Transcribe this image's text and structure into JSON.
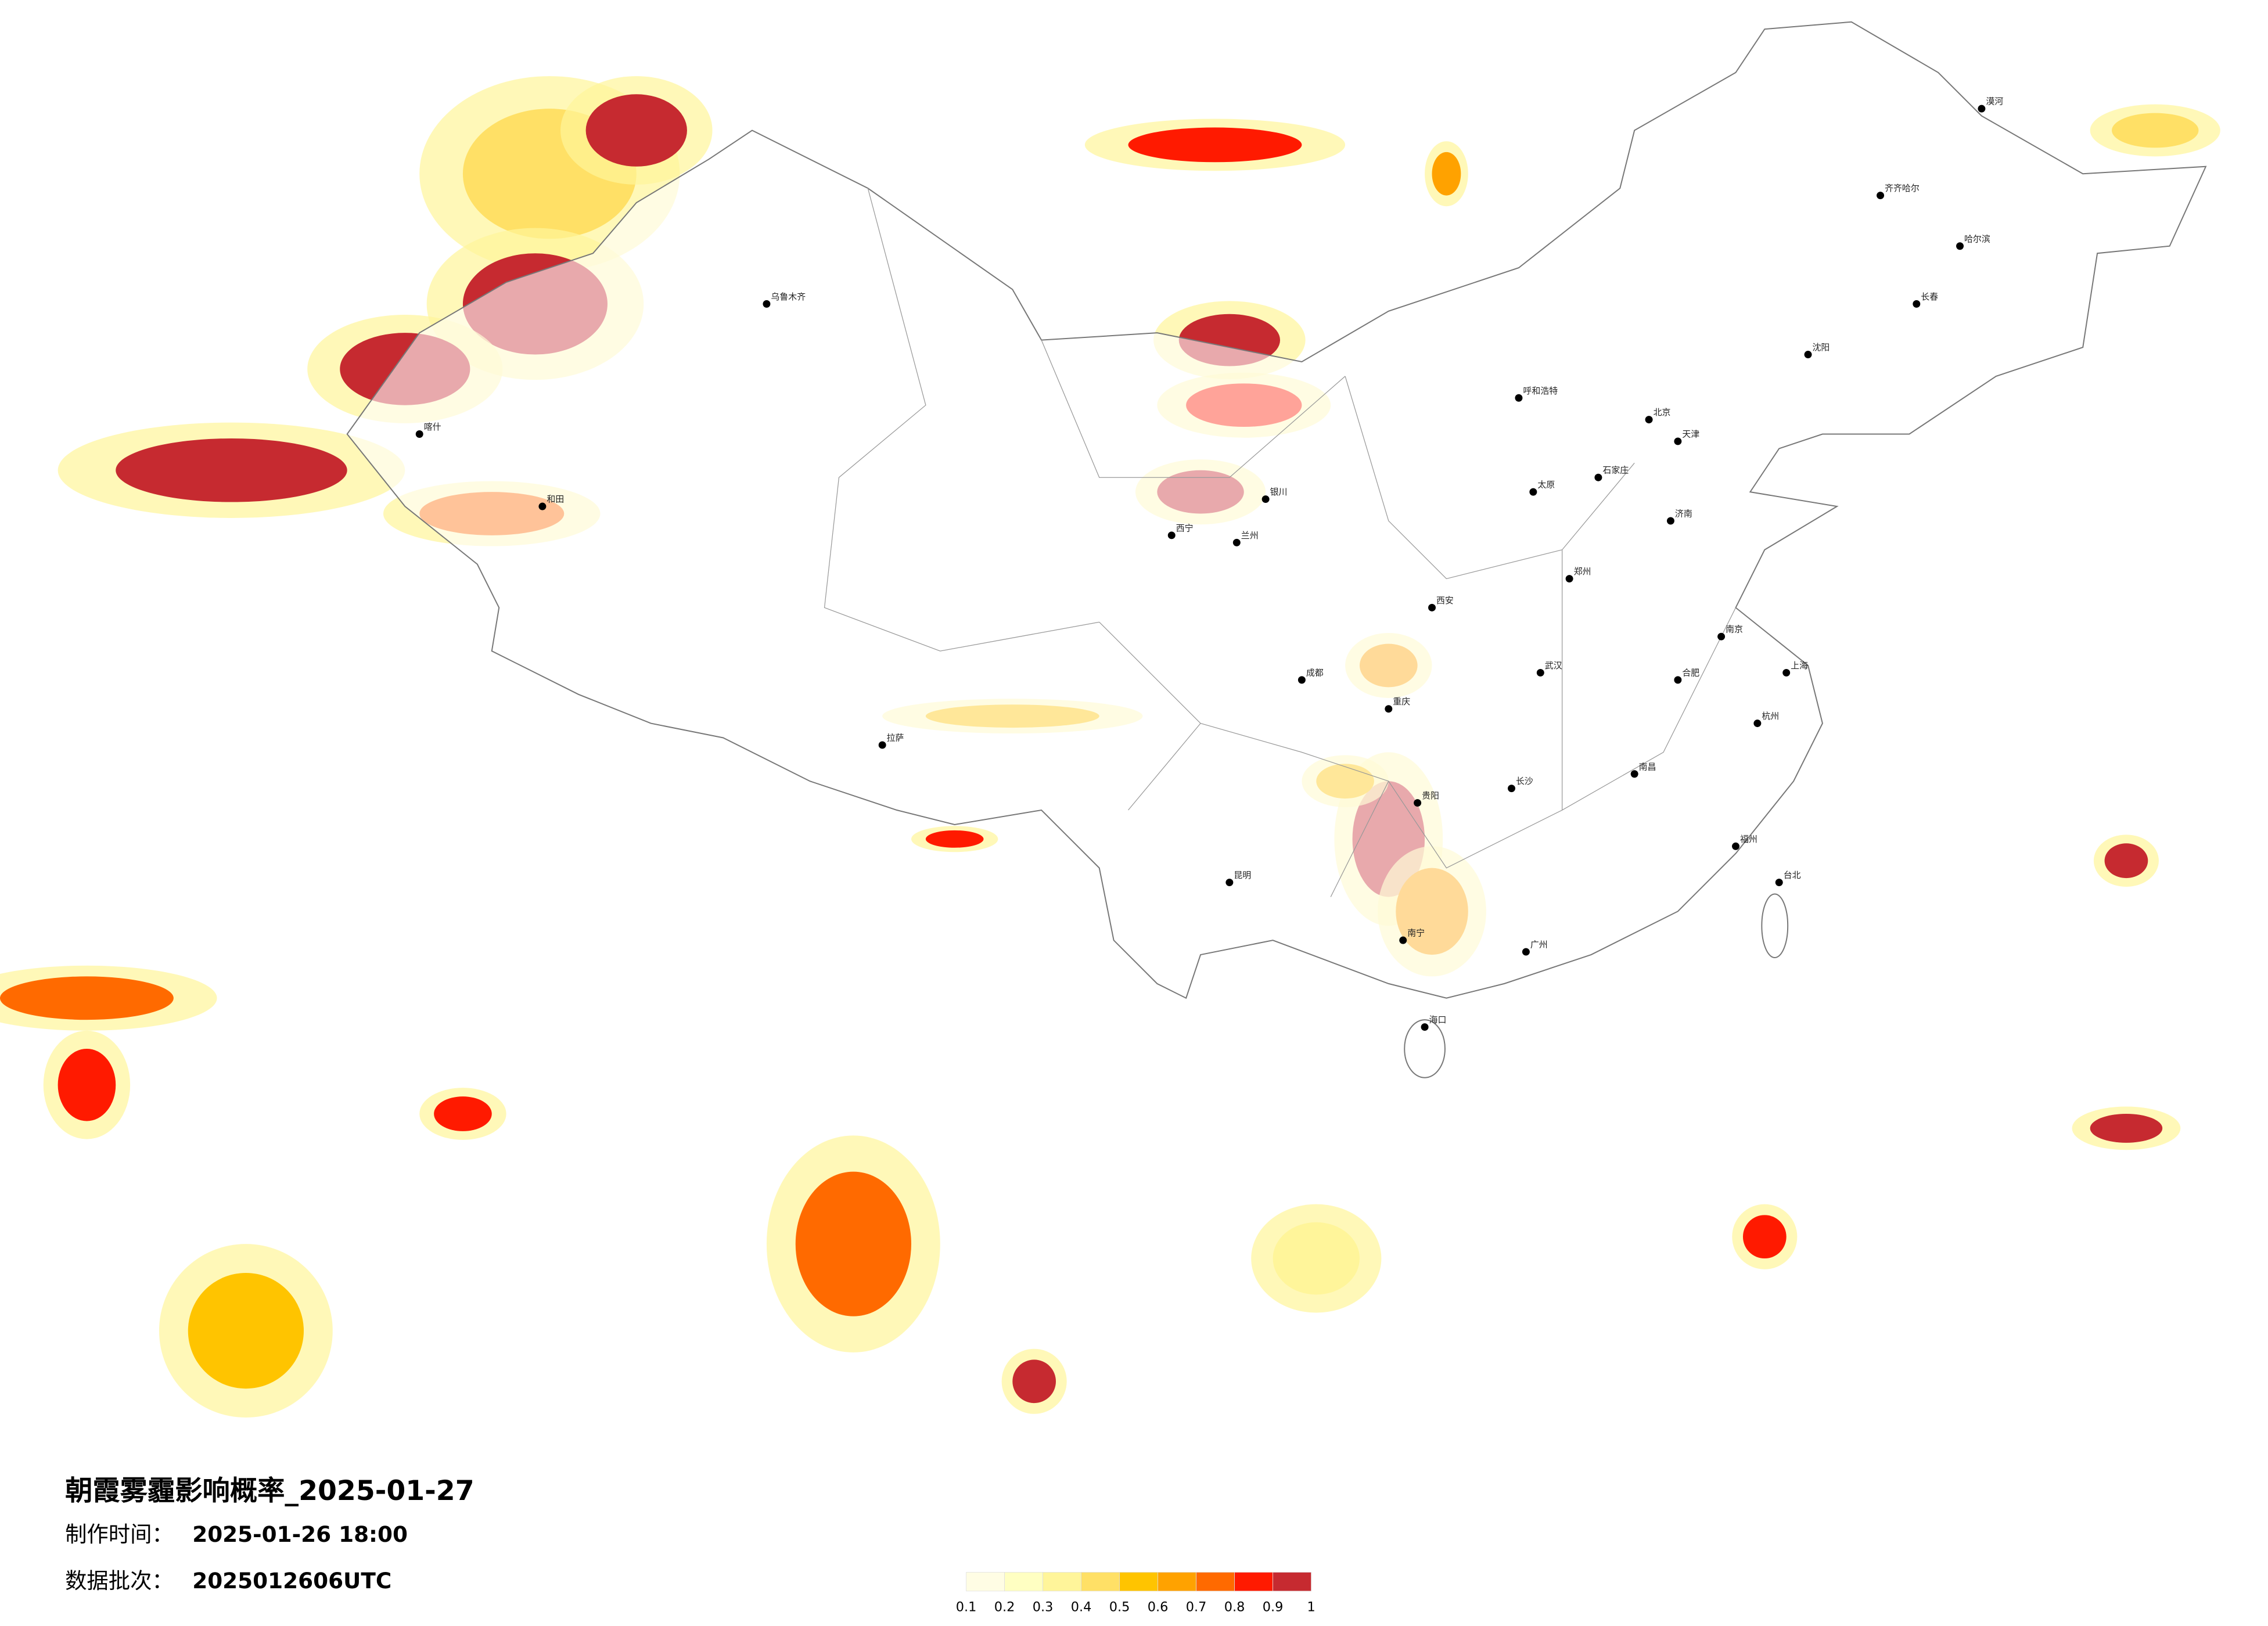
{
  "header": {
    "title": "朝霞雾霾影响概率_2025-01-27",
    "production_time": {
      "label": "制作时间：",
      "value": "2025-01-26 18:00"
    },
    "batch": {
      "label": "数据批次：",
      "value": "2025012606UTC"
    }
  },
  "legend": {
    "ticks": [
      0.1,
      0.2,
      0.3,
      0.4,
      0.5,
      0.6,
      0.7,
      0.8,
      0.9,
      1
    ],
    "colors": [
      "#fffde4",
      "#ffffc2",
      "#fff59a",
      "#ffe066",
      "#ffc400",
      "#ffa200",
      "#ff6a00",
      "#ff1a00",
      "#c62a30"
    ]
  },
  "cities": [
    "北京",
    "天津",
    "石家庄",
    "太原",
    "呼和浩特",
    "沈阳",
    "长春",
    "哈尔滨",
    "济南",
    "郑州",
    "西安",
    "兰州",
    "西宁",
    "银川",
    "乌鲁木齐",
    "拉萨",
    "成都",
    "重庆",
    "贵阳",
    "昆明",
    "南宁",
    "广州",
    "长沙",
    "武汉",
    "南昌",
    "合肥",
    "南京",
    "杭州",
    "福州",
    "上海",
    "海口",
    "台北",
    "喀什",
    "和田",
    "漠河",
    "齐齐哈尔"
  ]
}
